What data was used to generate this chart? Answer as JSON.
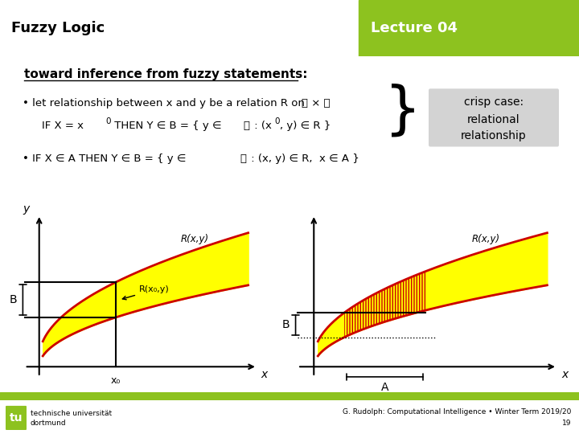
{
  "title_left": "Fuzzy Logic",
  "title_right": "Lecture 04",
  "header_bg_color": "#8dc21f",
  "header_text_color": "#ffffff",
  "subtitle": "toward inference from fuzzy statements:",
  "bullet1": "• let relationship between x and y be a relation R on ",
  "bullet1_math": "풳 × 풴",
  "bullet1b_pre": "   IF X = x",
  "bullet1b_mid": " THEN Y ∈ B = { y ∈ ",
  "bullet1b_ymath": "풴",
  "bullet1b_end": " : (x",
  "bullet1b_end2": ", y) ∈ R }",
  "bullet2": "• IF X ∈ A THEN Y ∈ B = { y ∈",
  "bullet2_math": "풴",
  "bullet2_end": " : (x, y) ∈ R,  x ∈ A }",
  "crisp_box_text1": "crisp case:",
  "crisp_box_text2": "relational",
  "crisp_box_text3": "relationship",
  "footer_text": "G. Rudolph: Computational Intelligence • Winter Term 2019/20",
  "footer_page": "19",
  "footer_logo_text1": "technische universität",
  "footer_logo_text2": "dortmund",
  "yellow_fill": "#ffff00",
  "red_line_color": "#cc0000",
  "green_bar_color": "#8dc21f"
}
